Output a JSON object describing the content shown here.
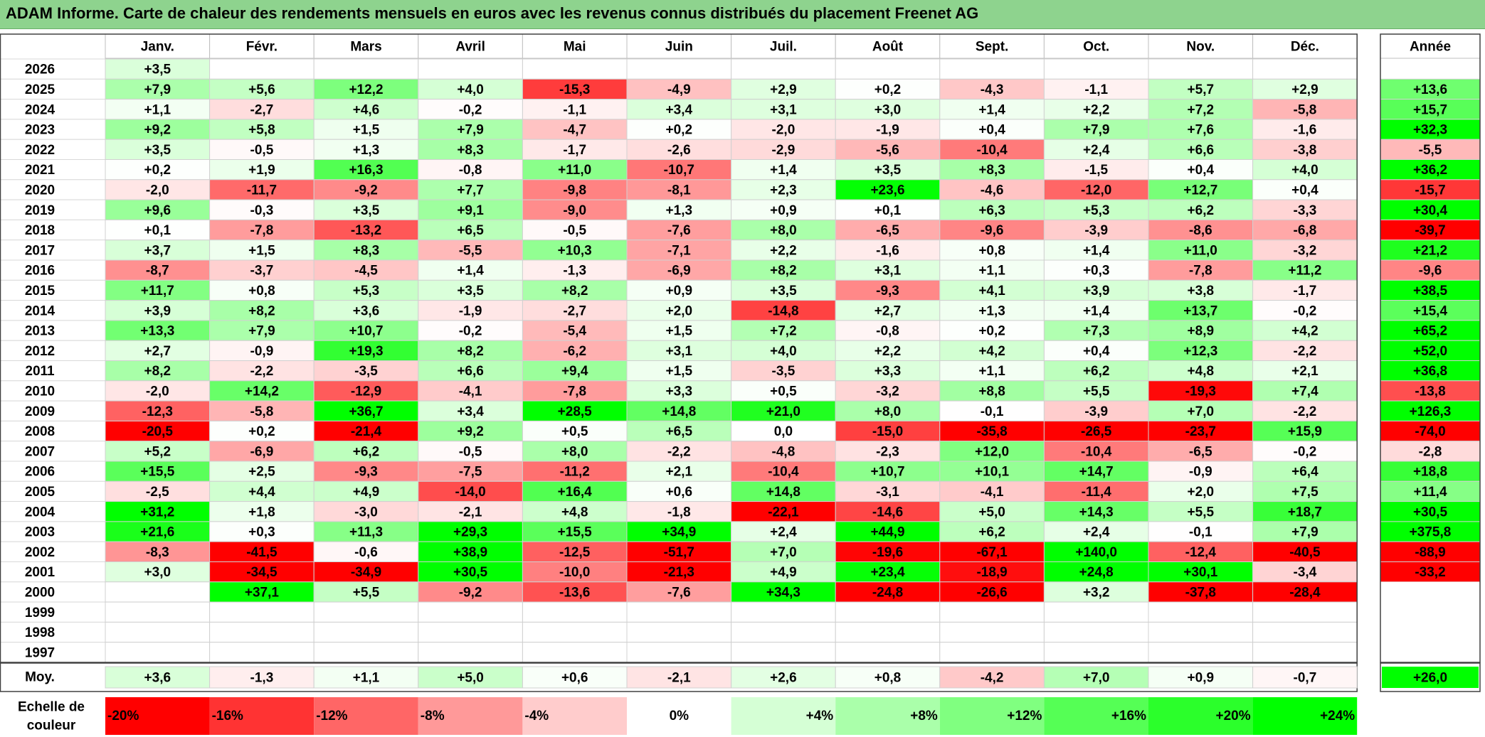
{
  "title": "ADAM Informe. Carte de chaleur des rendements mensuels en euros avec les revenus connus distribués du placement Freenet AG",
  "chart_data": {
    "type": "heatmap",
    "title": "ADAM Informe. Carte de chaleur des rendements mensuels en euros avec les revenus connus distribués du placement Freenet AG",
    "columns": [
      "Janv.",
      "Févr.",
      "Mars",
      "Avril",
      "Mai",
      "Juin",
      "Juil.",
      "Août",
      "Sept.",
      "Oct.",
      "Nov.",
      "Déc."
    ],
    "year_header": "Année",
    "years": [
      "2026",
      "2025",
      "2024",
      "2023",
      "2022",
      "2021",
      "2020",
      "2019",
      "2018",
      "2017",
      "2016",
      "2015",
      "2014",
      "2013",
      "2012",
      "2011",
      "2010",
      "2009",
      "2008",
      "2007",
      "2006",
      "2005",
      "2004",
      "2003",
      "2002",
      "2001",
      "2000",
      "1999",
      "1998",
      "1997"
    ],
    "values": [
      [
        3.5,
        null,
        null,
        null,
        null,
        null,
        null,
        null,
        null,
        null,
        null,
        null
      ],
      [
        7.9,
        5.6,
        12.2,
        4.0,
        -15.3,
        -4.9,
        2.9,
        0.2,
        -4.3,
        -1.1,
        5.7,
        2.9
      ],
      [
        1.1,
        -2.7,
        4.6,
        -0.2,
        -1.1,
        3.4,
        3.1,
        3.0,
        1.4,
        2.2,
        7.2,
        -5.8
      ],
      [
        9.2,
        5.8,
        1.5,
        7.9,
        -4.7,
        0.2,
        -2.0,
        -1.9,
        0.4,
        7.9,
        7.6,
        -1.6
      ],
      [
        3.5,
        -0.5,
        1.3,
        8.3,
        -1.7,
        -2.6,
        -2.9,
        -5.6,
        -10.4,
        2.4,
        6.6,
        -3.8
      ],
      [
        0.2,
        1.9,
        16.3,
        -0.8,
        11.0,
        -10.7,
        1.4,
        3.5,
        8.3,
        -1.5,
        0.4,
        4.0
      ],
      [
        -2.0,
        -11.7,
        -9.2,
        7.7,
        -9.8,
        -8.1,
        2.3,
        23.6,
        -4.6,
        -12.0,
        12.7,
        0.4
      ],
      [
        9.6,
        -0.3,
        3.5,
        9.1,
        -9.0,
        1.3,
        0.9,
        0.1,
        6.3,
        5.3,
        6.2,
        -3.3
      ],
      [
        0.1,
        -7.8,
        -13.2,
        6.5,
        -0.5,
        -7.6,
        8.0,
        -6.5,
        -9.6,
        -3.9,
        -8.6,
        -6.8
      ],
      [
        3.7,
        1.5,
        8.3,
        -5.5,
        10.3,
        -7.1,
        2.2,
        -1.6,
        0.8,
        1.4,
        11.0,
        -3.2
      ],
      [
        -8.7,
        -3.7,
        -4.5,
        1.4,
        -1.3,
        -6.9,
        8.2,
        3.1,
        1.1,
        0.3,
        -7.8,
        11.2
      ],
      [
        11.7,
        0.8,
        5.3,
        3.5,
        8.2,
        0.9,
        3.5,
        -9.3,
        4.1,
        3.9,
        3.8,
        -1.7
      ],
      [
        3.9,
        8.2,
        3.6,
        -1.9,
        -2.7,
        2.0,
        -14.8,
        2.7,
        1.3,
        1.4,
        13.7,
        -0.2
      ],
      [
        13.3,
        7.9,
        10.7,
        -0.2,
        -5.4,
        1.5,
        7.2,
        -0.8,
        0.2,
        7.3,
        8.9,
        4.2
      ],
      [
        2.7,
        -0.9,
        19.3,
        8.2,
        -6.2,
        3.1,
        4.0,
        2.2,
        4.2,
        0.4,
        12.3,
        -2.2
      ],
      [
        8.2,
        -2.2,
        -3.5,
        6.6,
        9.4,
        1.5,
        -3.5,
        3.3,
        1.1,
        6.2,
        4.8,
        2.1
      ],
      [
        -2.0,
        14.2,
        -12.9,
        -4.1,
        -7.8,
        3.3,
        0.5,
        -3.2,
        8.8,
        5.5,
        -19.3,
        7.4
      ],
      [
        -12.3,
        -5.8,
        36.7,
        3.4,
        28.5,
        14.8,
        21.0,
        8.0,
        -0.1,
        -3.9,
        7.0,
        -2.2
      ],
      [
        -20.5,
        0.2,
        -21.4,
        9.2,
        0.5,
        6.5,
        0.0,
        -15.0,
        -35.8,
        -26.5,
        -23.7,
        15.9
      ],
      [
        5.2,
        -6.9,
        6.2,
        -0.5,
        8.0,
        -2.2,
        -4.8,
        -2.3,
        12.0,
        -10.4,
        -6.5,
        -0.2
      ],
      [
        15.5,
        2.5,
        -9.3,
        -7.5,
        -11.2,
        2.1,
        -10.4,
        10.7,
        10.1,
        14.7,
        -0.9,
        6.4
      ],
      [
        -2.5,
        4.4,
        4.9,
        -14.0,
        16.4,
        0.6,
        14.8,
        -3.1,
        -4.1,
        -11.4,
        2.0,
        7.5
      ],
      [
        31.2,
        1.8,
        -3.0,
        -2.1,
        4.8,
        -1.8,
        -22.1,
        -14.6,
        5.0,
        14.3,
        5.5,
        18.7
      ],
      [
        21.6,
        0.3,
        11.3,
        29.3,
        15.5,
        34.9,
        2.4,
        44.9,
        6.2,
        2.4,
        -0.1,
        7.9
      ],
      [
        -8.3,
        -41.5,
        -0.6,
        38.9,
        -12.5,
        -51.7,
        7.0,
        -19.6,
        -67.1,
        140.0,
        -12.4,
        -40.5
      ],
      [
        3.0,
        -34.5,
        -34.9,
        30.5,
        -10.0,
        -21.3,
        4.9,
        23.4,
        -18.9,
        24.8,
        30.1,
        -3.4
      ],
      [
        null,
        37.1,
        5.5,
        -9.2,
        -13.6,
        -7.6,
        34.3,
        -24.8,
        -26.6,
        3.2,
        -37.8,
        -28.4
      ],
      [
        null,
        null,
        null,
        null,
        null,
        null,
        null,
        null,
        null,
        null,
        null,
        null
      ],
      [
        null,
        null,
        null,
        null,
        null,
        null,
        null,
        null,
        null,
        null,
        null,
        null
      ],
      [
        null,
        null,
        null,
        null,
        null,
        null,
        null,
        null,
        null,
        null,
        null,
        null
      ]
    ],
    "annual": [
      null,
      13.6,
      15.7,
      32.3,
      -5.5,
      36.2,
      -15.7,
      30.4,
      -39.7,
      21.2,
      -9.6,
      38.5,
      15.4,
      65.2,
      52.0,
      36.8,
      -13.8,
      126.3,
      -74.0,
      -2.8,
      18.8,
      11.4,
      30.5,
      375.8,
      -88.9,
      -33.2,
      null,
      null,
      null,
      null
    ],
    "average_label": "Moy.",
    "averages": [
      3.6,
      -1.3,
      1.1,
      5.0,
      0.6,
      -2.1,
      2.6,
      0.8,
      -4.2,
      7.0,
      0.9,
      -0.7
    ],
    "average_annual": 26.0,
    "scale_label": "Echelle de couleur",
    "scale": [
      {
        "label": "-20%",
        "value": -20
      },
      {
        "label": "-16%",
        "value": -16
      },
      {
        "label": "-12%",
        "value": -12
      },
      {
        "label": "-8%",
        "value": -8
      },
      {
        "label": "-4%",
        "value": -4
      },
      {
        "label": "0%",
        "value": 0
      },
      {
        "label": "+4%",
        "value": 4
      },
      {
        "label": "+8%",
        "value": 8
      },
      {
        "label": "+12%",
        "value": 12
      },
      {
        "label": "+16%",
        "value": 16
      },
      {
        "label": "+20%",
        "value": 20
      },
      {
        "label": "+24%",
        "value": 24
      }
    ]
  }
}
